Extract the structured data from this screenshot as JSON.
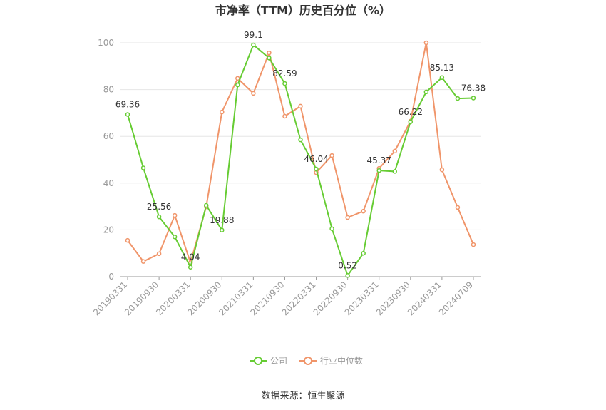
{
  "chart_data": {
    "type": "line",
    "title": "市净率（TTM）历史百分位（%）",
    "source": "数据来源：恒生聚源",
    "categories": [
      "20190331",
      null,
      "20190930",
      null,
      "20200331",
      null,
      "20200930",
      null,
      "20210331",
      null,
      "20210930",
      null,
      "20220331",
      null,
      "20220930",
      null,
      "20230331",
      null,
      "20230930",
      null,
      "20240331",
      null,
      "20240709"
    ],
    "series": [
      {
        "name": "公司",
        "color": "#66cc33",
        "values": [
          69.36,
          46.5,
          25.56,
          17,
          4.04,
          30.5,
          19.88,
          82,
          99.1,
          93.5,
          82.59,
          58.5,
          46.04,
          20.5,
          0.52,
          10,
          45.37,
          45,
          66.22,
          79,
          85.13,
          76.2,
          76.38
        ]
      },
      {
        "name": "行业中位数",
        "color": "#f0956a",
        "values": [
          15.5,
          6.5,
          9.8,
          26.2,
          6,
          29.9,
          70.4,
          84.8,
          78.4,
          95.7,
          68.6,
          72.9,
          44.5,
          51.8,
          25.3,
          28,
          46.3,
          53.7,
          66.5,
          100,
          45.7,
          29.6,
          13.7
        ]
      }
    ],
    "ylim": [
      0,
      100
    ],
    "yticks": [
      0,
      20,
      40,
      60,
      80,
      100
    ],
    "grid": true
  }
}
